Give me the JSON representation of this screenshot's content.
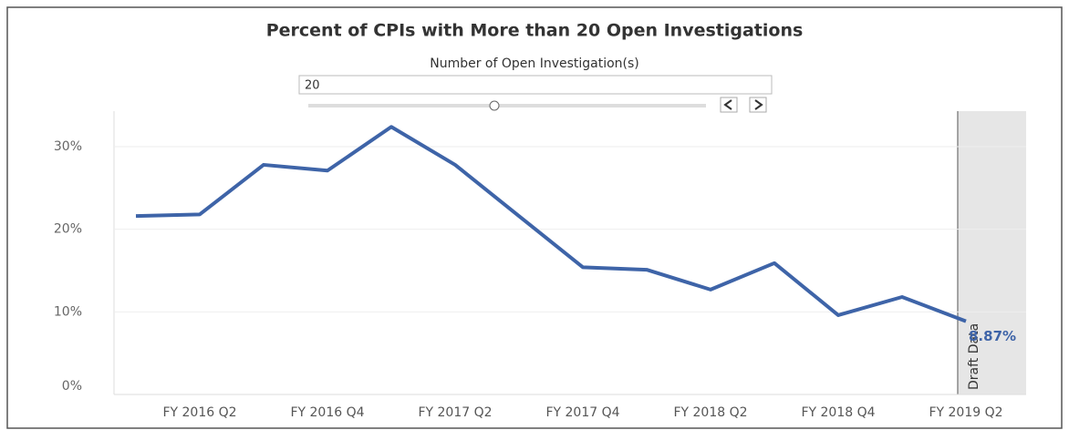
{
  "chart_data": {
    "type": "line",
    "title": "Percent of CPIs with More than 20 Open Investigations",
    "control": {
      "label": "Number of Open Investigation(s)",
      "value": "20"
    },
    "categories": [
      null,
      "FY 2016 Q2",
      null,
      "FY 2016 Q4",
      null,
      "FY 2017 Q2",
      null,
      "FY 2017 Q4",
      null,
      "FY 2018 Q2",
      null,
      "FY 2018 Q4",
      null,
      "FY 2019 Q2"
    ],
    "series": [
      {
        "name": "Percent",
        "color": "#3e64a8",
        "values": [
          21.6,
          21.8,
          27.8,
          27.1,
          32.4,
          27.8,
          21.6,
          15.4,
          15.1,
          12.7,
          15.9,
          9.6,
          11.8,
          8.87
        ],
        "value_labels": [
          null,
          null,
          null,
          null,
          null,
          null,
          null,
          null,
          null,
          null,
          null,
          null,
          null,
          "8.87%"
        ]
      }
    ],
    "ylim": [
      0,
      34.3
    ],
    "yticks": [
      {
        "value": 0,
        "label": "0%"
      },
      {
        "value": 10,
        "label": "10%"
      },
      {
        "value": 20,
        "label": "20%"
      },
      {
        "value": 30,
        "label": "30%"
      }
    ],
    "grid": true,
    "annotation": "Draft Data"
  }
}
